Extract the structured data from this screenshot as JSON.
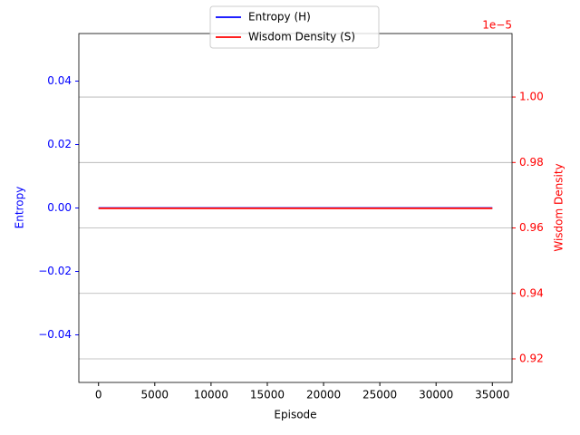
{
  "chart_data": {
    "type": "line",
    "x_label": "Episode",
    "y_label": "Entropy",
    "y2_label": "Wisdom Density",
    "y2_offset_label": "1e−5",
    "x": [
      0,
      35000
    ],
    "series": [
      {
        "name": "Entropy (H)",
        "color": "#0000ff",
        "values": [
          0,
          0
        ]
      },
      {
        "name": "Wisdom Density (S)",
        "color": "#ff0000",
        "axis": "y2",
        "values": [
          0.966,
          0.966
        ]
      }
    ],
    "xlim": [
      -1750,
      36750
    ],
    "xticks": [
      0,
      5000,
      10000,
      15000,
      20000,
      25000,
      30000,
      35000
    ],
    "ylim": [
      -0.055,
      0.055
    ],
    "yticks": [
      {
        "value": -0.04,
        "label": "−0.04"
      },
      {
        "value": -0.02,
        "label": "−0.02"
      },
      {
        "value": 0,
        "label": "0.00"
      },
      {
        "value": 0.02,
        "label": "0.02"
      },
      {
        "value": 0.04,
        "label": "0.04"
      }
    ],
    "y2lim": [
      0.9128,
      1.0194
    ],
    "y2ticks": [
      {
        "value": 0.92,
        "label": "0.92"
      },
      {
        "value": 0.94,
        "label": "0.94"
      },
      {
        "value": 0.96,
        "label": "0.96"
      },
      {
        "value": 0.98,
        "label": "0.98"
      },
      {
        "value": 1.0,
        "label": "1.00"
      }
    ],
    "grid": "y2",
    "legend": "upper center",
    "y_color": "#0000ff",
    "y2_color": "#ff0000"
  }
}
